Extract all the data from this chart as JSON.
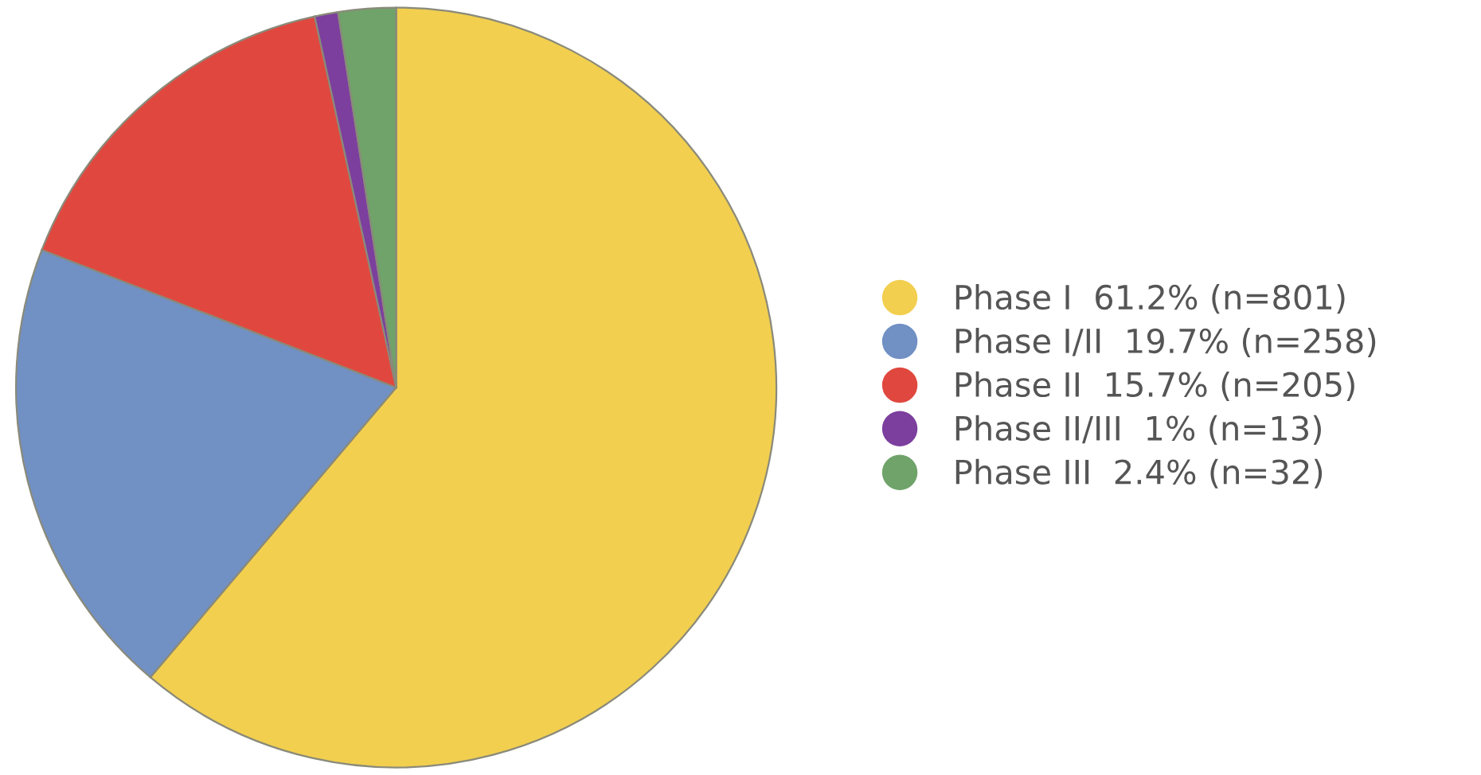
{
  "chart_data": {
    "type": "pie",
    "categories": [
      "Phase I  61.2% (n=801)",
      "Phase I/II  19.7% (n=258)",
      "Phase II  15.7% (n=205)",
      "Phase II/III  1% (n=13)",
      "Phase III  2.4% (n=32)"
    ],
    "values": [
      801,
      258,
      205,
      13,
      32
    ],
    "colors": [
      "#f2cf4f",
      "#7190c4",
      "#e0483f",
      "#7c3f9e",
      "#6fa36a"
    ],
    "legend": "right"
  }
}
